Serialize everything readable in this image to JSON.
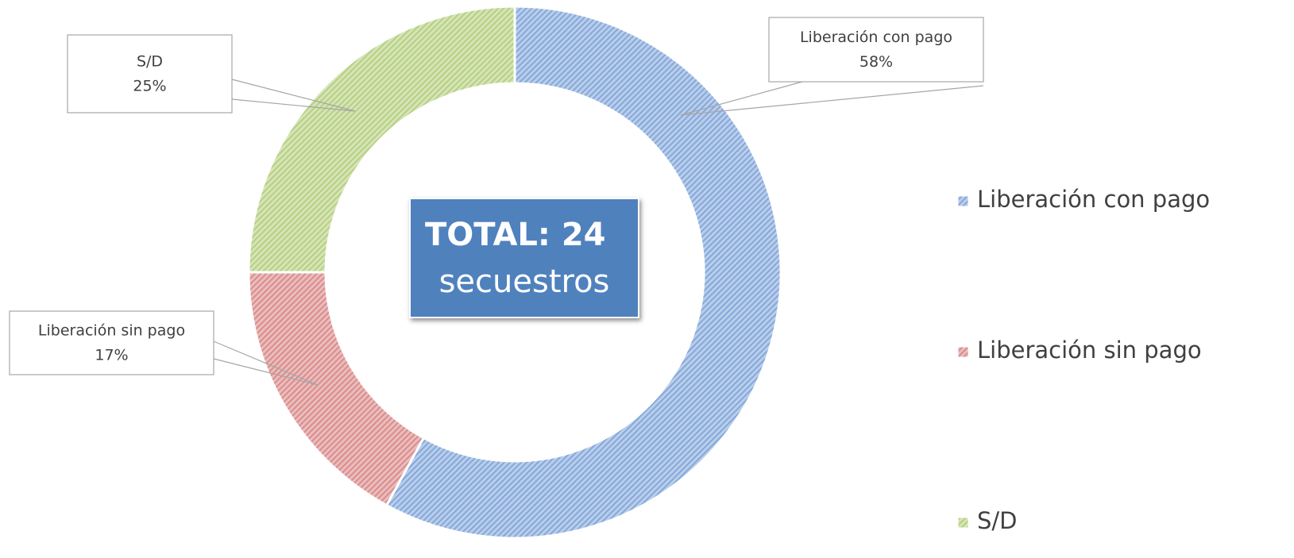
{
  "chart_data": {
    "type": "donut",
    "categories": [
      "Liberación con pago",
      "Liberación sin pago",
      "S/D"
    ],
    "values": [
      58,
      17,
      25
    ],
    "value_labels": [
      "58%",
      "17%",
      "25%"
    ],
    "colors": [
      "#7ea3d8",
      "#d98585",
      "#b2cd7a"
    ],
    "center_label": {
      "title": "TOTAL: 24",
      "subtitle": "secuestros"
    },
    "legend": "right"
  }
}
